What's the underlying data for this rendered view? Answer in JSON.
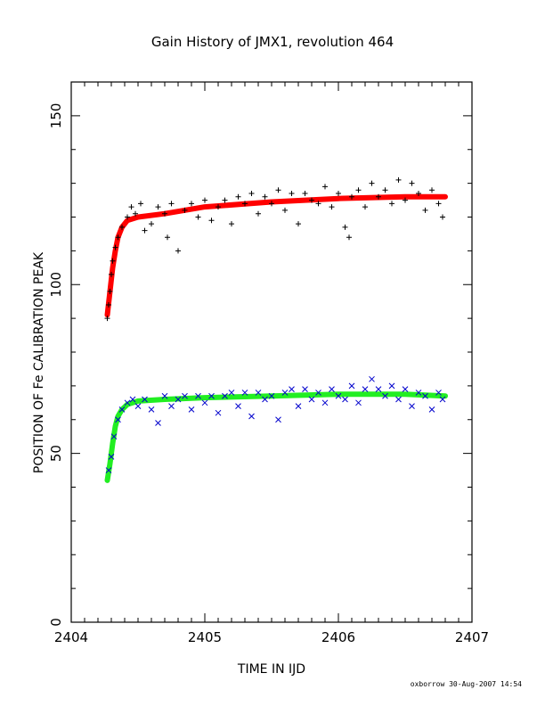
{
  "chart_data": {
    "type": "scatter",
    "title": "Gain History of JMX1, revolution 464",
    "xlabel": "TIME IN IJD",
    "ylabel": "POSITION OF Fe CALIBRATION PEAK",
    "xlim": [
      2404,
      2407
    ],
    "ylim": [
      0,
      160
    ],
    "xticks": [
      2404,
      2405,
      2406,
      2407
    ],
    "yticks": [
      0,
      50,
      100,
      150
    ],
    "grid": false,
    "footer": "oxborrow 30-Aug-2007 14:54",
    "series": [
      {
        "marker": "+",
        "color": "#000000",
        "points": [
          [
            2404.27,
            90
          ],
          [
            2404.28,
            94
          ],
          [
            2404.29,
            98
          ],
          [
            2404.3,
            103
          ],
          [
            2404.31,
            107
          ],
          [
            2404.33,
            111
          ],
          [
            2404.35,
            114
          ],
          [
            2404.38,
            117
          ],
          [
            2404.42,
            120
          ],
          [
            2404.45,
            123
          ],
          [
            2404.48,
            121
          ],
          [
            2404.52,
            124
          ],
          [
            2404.55,
            116
          ],
          [
            2404.6,
            118
          ],
          [
            2404.65,
            123
          ],
          [
            2404.7,
            121
          ],
          [
            2404.72,
            114
          ],
          [
            2404.75,
            124
          ],
          [
            2404.8,
            110
          ],
          [
            2404.85,
            122
          ],
          [
            2404.9,
            124
          ],
          [
            2404.95,
            120
          ],
          [
            2405.0,
            125
          ],
          [
            2405.05,
            119
          ],
          [
            2405.1,
            123
          ],
          [
            2405.15,
            125
          ],
          [
            2405.2,
            118
          ],
          [
            2405.25,
            126
          ],
          [
            2405.3,
            124
          ],
          [
            2405.35,
            127
          ],
          [
            2405.4,
            121
          ],
          [
            2405.45,
            126
          ],
          [
            2405.5,
            124
          ],
          [
            2405.55,
            128
          ],
          [
            2405.6,
            122
          ],
          [
            2405.65,
            127
          ],
          [
            2405.7,
            118
          ],
          [
            2405.75,
            127
          ],
          [
            2405.8,
            125
          ],
          [
            2405.85,
            124
          ],
          [
            2405.9,
            129
          ],
          [
            2405.95,
            123
          ],
          [
            2406.0,
            127
          ],
          [
            2406.05,
            117
          ],
          [
            2406.08,
            114
          ],
          [
            2406.1,
            126
          ],
          [
            2406.15,
            128
          ],
          [
            2406.2,
            123
          ],
          [
            2406.25,
            130
          ],
          [
            2406.3,
            126
          ],
          [
            2406.35,
            128
          ],
          [
            2406.4,
            124
          ],
          [
            2406.45,
            131
          ],
          [
            2406.5,
            125
          ],
          [
            2406.55,
            130
          ],
          [
            2406.6,
            127
          ],
          [
            2406.65,
            122
          ],
          [
            2406.7,
            128
          ],
          [
            2406.75,
            124
          ],
          [
            2406.78,
            120
          ]
        ]
      },
      {
        "marker": "x",
        "color": "#0000cc",
        "points": [
          [
            2404.28,
            45
          ],
          [
            2404.3,
            49
          ],
          [
            2404.32,
            55
          ],
          [
            2404.35,
            60
          ],
          [
            2404.38,
            63
          ],
          [
            2404.42,
            65
          ],
          [
            2404.46,
            66
          ],
          [
            2404.5,
            64
          ],
          [
            2404.55,
            66
          ],
          [
            2404.6,
            63
          ],
          [
            2404.65,
            59
          ],
          [
            2404.7,
            67
          ],
          [
            2404.75,
            64
          ],
          [
            2404.8,
            66
          ],
          [
            2404.85,
            67
          ],
          [
            2404.9,
            63
          ],
          [
            2404.95,
            67
          ],
          [
            2405.0,
            65
          ],
          [
            2405.05,
            67
          ],
          [
            2405.1,
            62
          ],
          [
            2405.15,
            67
          ],
          [
            2405.2,
            68
          ],
          [
            2405.25,
            64
          ],
          [
            2405.3,
            68
          ],
          [
            2405.35,
            61
          ],
          [
            2405.4,
            68
          ],
          [
            2405.45,
            66
          ],
          [
            2405.5,
            67
          ],
          [
            2405.55,
            60
          ],
          [
            2405.6,
            68
          ],
          [
            2405.65,
            69
          ],
          [
            2405.7,
            64
          ],
          [
            2405.75,
            69
          ],
          [
            2405.8,
            66
          ],
          [
            2405.85,
            68
          ],
          [
            2405.9,
            65
          ],
          [
            2405.95,
            69
          ],
          [
            2406.0,
            67
          ],
          [
            2406.05,
            66
          ],
          [
            2406.1,
            70
          ],
          [
            2406.15,
            65
          ],
          [
            2406.2,
            69
          ],
          [
            2406.25,
            72
          ],
          [
            2406.3,
            69
          ],
          [
            2406.35,
            67
          ],
          [
            2406.4,
            70
          ],
          [
            2406.45,
            66
          ],
          [
            2406.5,
            69
          ],
          [
            2406.55,
            64
          ],
          [
            2406.6,
            68
          ],
          [
            2406.65,
            67
          ],
          [
            2406.7,
            63
          ],
          [
            2406.75,
            68
          ],
          [
            2406.78,
            66
          ]
        ]
      }
    ],
    "fits": [
      {
        "color": "#ff0000",
        "points": [
          [
            2404.27,
            91
          ],
          [
            2404.29,
            98
          ],
          [
            2404.31,
            105
          ],
          [
            2404.33,
            110
          ],
          [
            2404.35,
            114
          ],
          [
            2404.38,
            117
          ],
          [
            2404.42,
            119
          ],
          [
            2404.5,
            120
          ],
          [
            2404.7,
            121
          ],
          [
            2405.0,
            123
          ],
          [
            2405.5,
            124.5
          ],
          [
            2406.0,
            125.5
          ],
          [
            2406.5,
            126
          ],
          [
            2406.8,
            126
          ]
        ]
      },
      {
        "color": "#22ee22",
        "points": [
          [
            2404.27,
            42
          ],
          [
            2404.29,
            47
          ],
          [
            2404.31,
            53
          ],
          [
            2404.33,
            58
          ],
          [
            2404.35,
            61
          ],
          [
            2404.38,
            63
          ],
          [
            2404.42,
            64.5
          ],
          [
            2404.5,
            65.5
          ],
          [
            2404.7,
            66
          ],
          [
            2405.0,
            66.5
          ],
          [
            2405.5,
            67
          ],
          [
            2406.0,
            67.5
          ],
          [
            2406.5,
            67.5
          ],
          [
            2406.8,
            67
          ]
        ]
      }
    ]
  }
}
